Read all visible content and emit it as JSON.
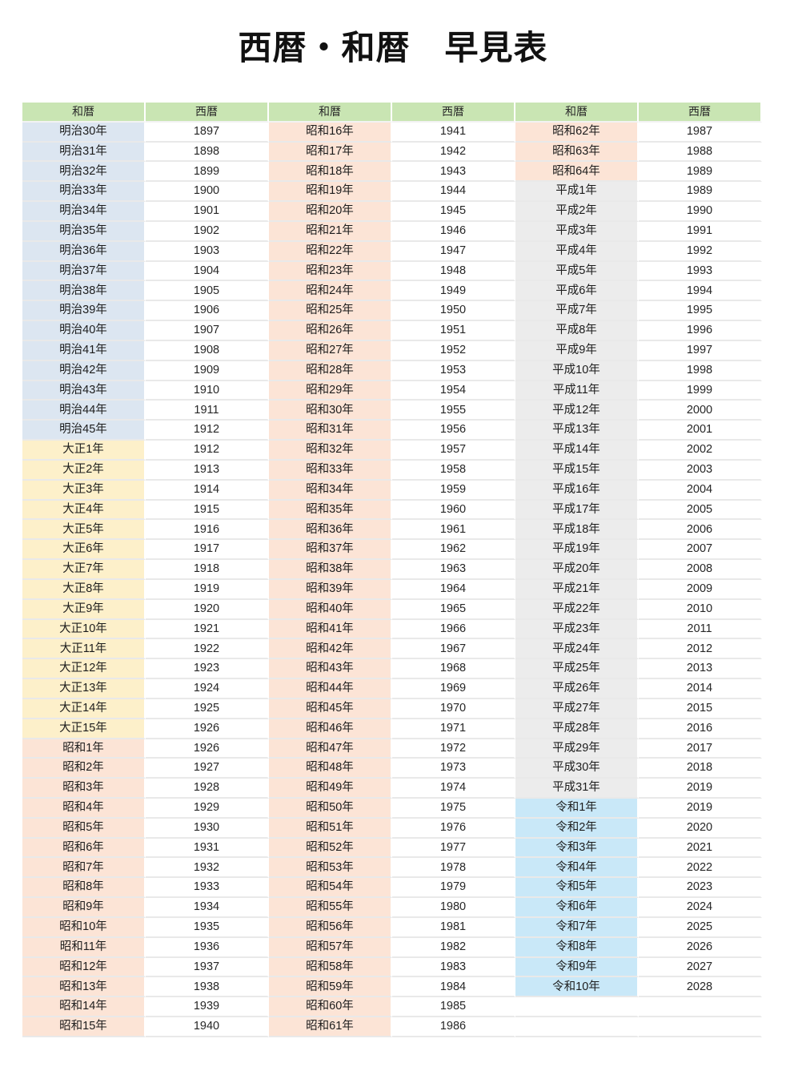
{
  "page_title": "西暦・和暦　早見表",
  "colors": {
    "header_bg": "#c9e5b3",
    "meiji": "#dce6f1",
    "taisho": "#fdf0ca",
    "showa": "#fce4d6",
    "heisei": "#ececec",
    "reiwa": "#c9e8f8",
    "empty": "#ffffff",
    "year_bg": "#ffffff"
  },
  "table": {
    "headers": [
      "和暦",
      "西暦",
      "和暦",
      "西暦",
      "和暦",
      "西暦"
    ],
    "row_count": 46,
    "columns": [
      {
        "rows": [
          [
            "明治30年",
            "1897",
            "meiji"
          ],
          [
            "明治31年",
            "1898",
            "meiji"
          ],
          [
            "明治32年",
            "1899",
            "meiji"
          ],
          [
            "明治33年",
            "1900",
            "meiji"
          ],
          [
            "明治34年",
            "1901",
            "meiji"
          ],
          [
            "明治35年",
            "1902",
            "meiji"
          ],
          [
            "明治36年",
            "1903",
            "meiji"
          ],
          [
            "明治37年",
            "1904",
            "meiji"
          ],
          [
            "明治38年",
            "1905",
            "meiji"
          ],
          [
            "明治39年",
            "1906",
            "meiji"
          ],
          [
            "明治40年",
            "1907",
            "meiji"
          ],
          [
            "明治41年",
            "1908",
            "meiji"
          ],
          [
            "明治42年",
            "1909",
            "meiji"
          ],
          [
            "明治43年",
            "1910",
            "meiji"
          ],
          [
            "明治44年",
            "1911",
            "meiji"
          ],
          [
            "明治45年",
            "1912",
            "meiji"
          ],
          [
            "大正1年",
            "1912",
            "taisho"
          ],
          [
            "大正2年",
            "1913",
            "taisho"
          ],
          [
            "大正3年",
            "1914",
            "taisho"
          ],
          [
            "大正4年",
            "1915",
            "taisho"
          ],
          [
            "大正5年",
            "1916",
            "taisho"
          ],
          [
            "大正6年",
            "1917",
            "taisho"
          ],
          [
            "大正7年",
            "1918",
            "taisho"
          ],
          [
            "大正8年",
            "1919",
            "taisho"
          ],
          [
            "大正9年",
            "1920",
            "taisho"
          ],
          [
            "大正10年",
            "1921",
            "taisho"
          ],
          [
            "大正11年",
            "1922",
            "taisho"
          ],
          [
            "大正12年",
            "1923",
            "taisho"
          ],
          [
            "大正13年",
            "1924",
            "taisho"
          ],
          [
            "大正14年",
            "1925",
            "taisho"
          ],
          [
            "大正15年",
            "1926",
            "taisho"
          ],
          [
            "昭和1年",
            "1926",
            "showa"
          ],
          [
            "昭和2年",
            "1927",
            "showa"
          ],
          [
            "昭和3年",
            "1928",
            "showa"
          ],
          [
            "昭和4年",
            "1929",
            "showa"
          ],
          [
            "昭和5年",
            "1930",
            "showa"
          ],
          [
            "昭和6年",
            "1931",
            "showa"
          ],
          [
            "昭和7年",
            "1932",
            "showa"
          ],
          [
            "昭和8年",
            "1933",
            "showa"
          ],
          [
            "昭和9年",
            "1934",
            "showa"
          ],
          [
            "昭和10年",
            "1935",
            "showa"
          ],
          [
            "昭和11年",
            "1936",
            "showa"
          ],
          [
            "昭和12年",
            "1937",
            "showa"
          ],
          [
            "昭和13年",
            "1938",
            "showa"
          ],
          [
            "昭和14年",
            "1939",
            "showa"
          ],
          [
            "昭和15年",
            "1940",
            "showa"
          ]
        ]
      },
      {
        "rows": [
          [
            "昭和16年",
            "1941",
            "showa"
          ],
          [
            "昭和17年",
            "1942",
            "showa"
          ],
          [
            "昭和18年",
            "1943",
            "showa"
          ],
          [
            "昭和19年",
            "1944",
            "showa"
          ],
          [
            "昭和20年",
            "1945",
            "showa"
          ],
          [
            "昭和21年",
            "1946",
            "showa"
          ],
          [
            "昭和22年",
            "1947",
            "showa"
          ],
          [
            "昭和23年",
            "1948",
            "showa"
          ],
          [
            "昭和24年",
            "1949",
            "showa"
          ],
          [
            "昭和25年",
            "1950",
            "showa"
          ],
          [
            "昭和26年",
            "1951",
            "showa"
          ],
          [
            "昭和27年",
            "1952",
            "showa"
          ],
          [
            "昭和28年",
            "1953",
            "showa"
          ],
          [
            "昭和29年",
            "1954",
            "showa"
          ],
          [
            "昭和30年",
            "1955",
            "showa"
          ],
          [
            "昭和31年",
            "1956",
            "showa"
          ],
          [
            "昭和32年",
            "1957",
            "showa"
          ],
          [
            "昭和33年",
            "1958",
            "showa"
          ],
          [
            "昭和34年",
            "1959",
            "showa"
          ],
          [
            "昭和35年",
            "1960",
            "showa"
          ],
          [
            "昭和36年",
            "1961",
            "showa"
          ],
          [
            "昭和37年",
            "1962",
            "showa"
          ],
          [
            "昭和38年",
            "1963",
            "showa"
          ],
          [
            "昭和39年",
            "1964",
            "showa"
          ],
          [
            "昭和40年",
            "1965",
            "showa"
          ],
          [
            "昭和41年",
            "1966",
            "showa"
          ],
          [
            "昭和42年",
            "1967",
            "showa"
          ],
          [
            "昭和43年",
            "1968",
            "showa"
          ],
          [
            "昭和44年",
            "1969",
            "showa"
          ],
          [
            "昭和45年",
            "1970",
            "showa"
          ],
          [
            "昭和46年",
            "1971",
            "showa"
          ],
          [
            "昭和47年",
            "1972",
            "showa"
          ],
          [
            "昭和48年",
            "1973",
            "showa"
          ],
          [
            "昭和49年",
            "1974",
            "showa"
          ],
          [
            "昭和50年",
            "1975",
            "showa"
          ],
          [
            "昭和51年",
            "1976",
            "showa"
          ],
          [
            "昭和52年",
            "1977",
            "showa"
          ],
          [
            "昭和53年",
            "1978",
            "showa"
          ],
          [
            "昭和54年",
            "1979",
            "showa"
          ],
          [
            "昭和55年",
            "1980",
            "showa"
          ],
          [
            "昭和56年",
            "1981",
            "showa"
          ],
          [
            "昭和57年",
            "1982",
            "showa"
          ],
          [
            "昭和58年",
            "1983",
            "showa"
          ],
          [
            "昭和59年",
            "1984",
            "showa"
          ],
          [
            "昭和60年",
            "1985",
            "showa"
          ],
          [
            "昭和61年",
            "1986",
            "showa"
          ]
        ]
      },
      {
        "rows": [
          [
            "昭和62年",
            "1987",
            "showa"
          ],
          [
            "昭和63年",
            "1988",
            "showa"
          ],
          [
            "昭和64年",
            "1989",
            "showa"
          ],
          [
            "平成1年",
            "1989",
            "heisei"
          ],
          [
            "平成2年",
            "1990",
            "heisei"
          ],
          [
            "平成3年",
            "1991",
            "heisei"
          ],
          [
            "平成4年",
            "1992",
            "heisei"
          ],
          [
            "平成5年",
            "1993",
            "heisei"
          ],
          [
            "平成6年",
            "1994",
            "heisei"
          ],
          [
            "平成7年",
            "1995",
            "heisei"
          ],
          [
            "平成8年",
            "1996",
            "heisei"
          ],
          [
            "平成9年",
            "1997",
            "heisei"
          ],
          [
            "平成10年",
            "1998",
            "heisei"
          ],
          [
            "平成11年",
            "1999",
            "heisei"
          ],
          [
            "平成12年",
            "2000",
            "heisei"
          ],
          [
            "平成13年",
            "2001",
            "heisei"
          ],
          [
            "平成14年",
            "2002",
            "heisei"
          ],
          [
            "平成15年",
            "2003",
            "heisei"
          ],
          [
            "平成16年",
            "2004",
            "heisei"
          ],
          [
            "平成17年",
            "2005",
            "heisei"
          ],
          [
            "平成18年",
            "2006",
            "heisei"
          ],
          [
            "平成19年",
            "2007",
            "heisei"
          ],
          [
            "平成20年",
            "2008",
            "heisei"
          ],
          [
            "平成21年",
            "2009",
            "heisei"
          ],
          [
            "平成22年",
            "2010",
            "heisei"
          ],
          [
            "平成23年",
            "2011",
            "heisei"
          ],
          [
            "平成24年",
            "2012",
            "heisei"
          ],
          [
            "平成25年",
            "2013",
            "heisei"
          ],
          [
            "平成26年",
            "2014",
            "heisei"
          ],
          [
            "平成27年",
            "2015",
            "heisei"
          ],
          [
            "平成28年",
            "2016",
            "heisei"
          ],
          [
            "平成29年",
            "2017",
            "heisei"
          ],
          [
            "平成30年",
            "2018",
            "heisei"
          ],
          [
            "平成31年",
            "2019",
            "heisei"
          ],
          [
            "令和1年",
            "2019",
            "reiwa"
          ],
          [
            "令和2年",
            "2020",
            "reiwa"
          ],
          [
            "令和3年",
            "2021",
            "reiwa"
          ],
          [
            "令和4年",
            "2022",
            "reiwa"
          ],
          [
            "令和5年",
            "2023",
            "reiwa"
          ],
          [
            "令和6年",
            "2024",
            "reiwa"
          ],
          [
            "令和7年",
            "2025",
            "reiwa"
          ],
          [
            "令和8年",
            "2026",
            "reiwa"
          ],
          [
            "令和9年",
            "2027",
            "reiwa"
          ],
          [
            "令和10年",
            "2028",
            "reiwa"
          ],
          [
            "",
            "",
            "empty"
          ],
          [
            "",
            "",
            "empty"
          ]
        ]
      }
    ]
  }
}
